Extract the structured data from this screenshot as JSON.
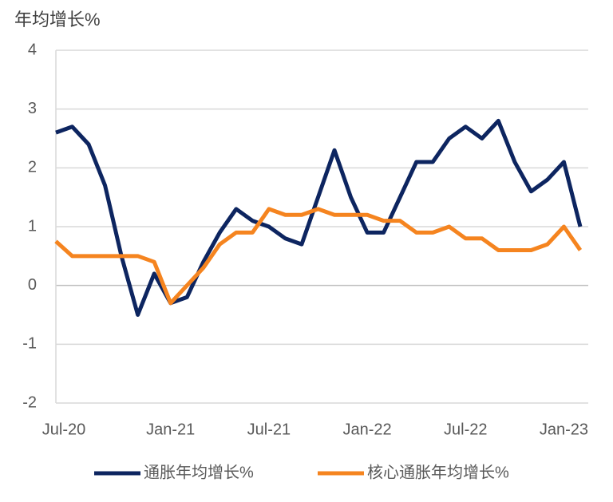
{
  "chart_data": {
    "type": "line",
    "y_axis_label": "年均增长%",
    "categories": [
      "Jul-20",
      null,
      null,
      null,
      null,
      null,
      null,
      "Jan-21",
      null,
      null,
      null,
      null,
      null,
      "Jul-21",
      null,
      null,
      null,
      null,
      null,
      "Jan-22",
      null,
      null,
      null,
      null,
      null,
      "Jul-22",
      null,
      null,
      null,
      null,
      null,
      "Jan-23",
      null
    ],
    "series": [
      {
        "name": "通胀年均增长%",
        "color": "#0d2560",
        "values": [
          2.6,
          2.7,
          2.4,
          1.7,
          0.5,
          -0.5,
          0.2,
          -0.3,
          -0.2,
          0.4,
          0.9,
          1.3,
          1.1,
          1.0,
          0.8,
          0.7,
          1.5,
          2.3,
          1.5,
          0.9,
          0.9,
          1.5,
          2.1,
          2.1,
          2.5,
          2.7,
          2.5,
          2.8,
          2.1,
          1.6,
          1.8,
          2.1,
          1.0
        ]
      },
      {
        "name": "核心通胀年均增长%",
        "color": "#f5841f",
        "values": [
          0.75,
          0.5,
          0.5,
          0.5,
          0.5,
          0.5,
          0.4,
          -0.3,
          0.0,
          0.3,
          0.7,
          0.9,
          0.9,
          1.3,
          1.2,
          1.2,
          1.3,
          1.2,
          1.2,
          1.2,
          1.1,
          1.1,
          0.9,
          0.9,
          1.0,
          0.8,
          0.8,
          0.6,
          0.6,
          0.6,
          0.7,
          1.0,
          0.6
        ]
      }
    ],
    "ylim": [
      -2,
      4
    ],
    "yticks": [
      -2,
      -1,
      0,
      1,
      2,
      3,
      4
    ],
    "grid": true,
    "legend": "bottom"
  }
}
